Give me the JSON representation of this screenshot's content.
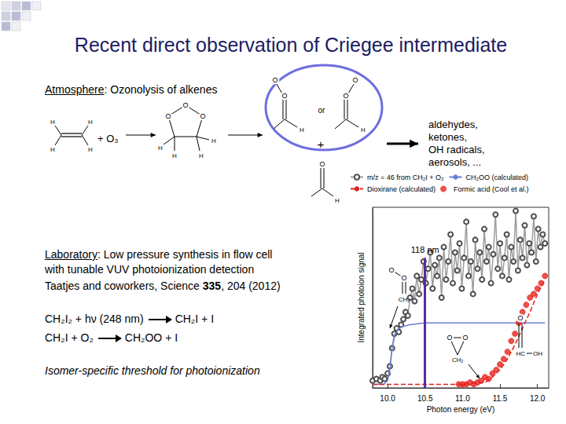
{
  "title": "Recent direct observation of Criegee intermediate",
  "atmosphere": {
    "label": "Atmosphere",
    "text": ": Ozonolysis of alkenes"
  },
  "scheme": {
    "atom_O": "O",
    "atom_H": "H",
    "reagent": "+ O₃",
    "plus": "+",
    "or": "or",
    "products": [
      "aldehydes,",
      "ketones,",
      "OH radicals,",
      "aerosols, ..."
    ]
  },
  "laboratory": {
    "label": "Laboratory",
    "lines": [
      ": Low pressure synthesis in flow cell",
      "with tunable VUV photoionization detection"
    ],
    "reference": [
      "Taatjes and coworkers, Science ",
      "335",
      ", 204 (2012)"
    ]
  },
  "reactions": [
    {
      "reactants": "CH₂I₂ + hν (248 nm)",
      "products": "CH₂I + I"
    },
    {
      "reactants": "CH₂I + O₂",
      "products": "CH₂OO + I"
    }
  ],
  "note": "Isomer-specific threshold for photoionization",
  "structure_labels": {
    "CH2OO": [
      "O",
      "O",
      "CH₂"
    ],
    "dioxirane": [
      "O",
      "O",
      "CH₂"
    ],
    "formic_acid": [
      "O",
      "HC",
      "OH"
    ]
  },
  "chart_data": {
    "type": "line",
    "x_label": "Photon energy (eV)",
    "y_label": "Integrated photoion signal",
    "xlim": [
      9.8,
      12.15
    ],
    "xticks": [
      {
        "value": 10,
        "label": "10.0"
      },
      {
        "value": 10.5,
        "label": "10.5"
      },
      {
        "value": 11,
        "label": "11.0"
      },
      {
        "value": 11.5,
        "label": "11.5"
      },
      {
        "value": 12,
        "label": "12.0"
      }
    ],
    "ylim": [
      0,
      1
    ],
    "yticks": [],
    "tick_labels": "x",
    "grid": false,
    "legend": "top",
    "series": [
      {
        "name": "m/z = 46 from CH₂I + O₂",
        "type": "line",
        "color": "#4d4d4d",
        "marker": "open_circle",
        "line_style": "solid",
        "x": [
          9.8,
          9.85,
          9.9,
          9.93,
          9.96,
          10.0,
          10.03,
          10.06,
          10.09,
          10.12,
          10.15,
          10.18,
          10.21,
          10.24,
          10.27,
          10.3,
          10.33,
          10.36,
          10.39,
          10.42,
          10.45,
          10.48,
          10.51,
          10.54,
          10.57,
          10.6,
          10.63,
          10.66,
          10.69,
          10.72,
          10.75,
          10.78,
          10.81,
          10.84,
          10.87,
          10.9,
          10.93,
          10.96,
          10.99,
          11.02,
          11.05,
          11.08,
          11.11,
          11.14,
          11.17,
          11.2,
          11.23,
          11.26,
          11.29,
          11.32,
          11.35,
          11.38,
          11.41,
          11.44,
          11.47,
          11.5,
          11.53,
          11.56,
          11.59,
          11.62,
          11.65,
          11.68,
          11.71,
          11.74,
          11.77,
          11.8,
          11.83,
          11.86,
          11.89,
          11.92,
          11.95,
          11.98,
          12.01,
          12.04,
          12.07,
          12.1
        ],
        "values": [
          0.04,
          0.05,
          0.04,
          0.06,
          0.05,
          0.08,
          0.12,
          0.22,
          0.3,
          0.33,
          0.31,
          0.35,
          0.38,
          0.42,
          0.4,
          0.5,
          0.55,
          0.48,
          0.62,
          0.52,
          0.6,
          0.7,
          0.58,
          0.66,
          0.75,
          0.55,
          0.68,
          0.62,
          0.72,
          0.5,
          0.78,
          0.6,
          0.7,
          0.85,
          0.58,
          0.75,
          0.65,
          0.8,
          0.55,
          0.72,
          0.92,
          0.62,
          0.7,
          0.52,
          0.82,
          0.66,
          0.75,
          0.6,
          0.88,
          0.7,
          0.78,
          0.58,
          0.74,
          0.96,
          0.66,
          0.8,
          0.62,
          0.72,
          0.85,
          0.6,
          0.78,
          0.7,
          0.98,
          0.65,
          0.82,
          0.72,
          0.9,
          0.68,
          0.8,
          0.75,
          0.95,
          0.7,
          0.88,
          0.78,
          0.85,
          0.8
        ]
      },
      {
        "name": "CH₂OO (calculated)",
        "type": "line",
        "color": "#6a7fd6",
        "marker": "none",
        "line_style": "solid",
        "x": [
          9.8,
          9.95,
          10.0,
          10.03,
          10.06,
          10.1,
          10.15,
          10.2,
          10.3,
          10.5,
          11.0,
          11.5,
          12.1
        ],
        "values": [
          0.02,
          0.02,
          0.04,
          0.1,
          0.22,
          0.3,
          0.33,
          0.34,
          0.35,
          0.36,
          0.36,
          0.36,
          0.36
        ]
      },
      {
        "name": "Dioxirane (calculated)",
        "type": "line",
        "color": "#e02020",
        "marker": "none",
        "line_style": "dashed",
        "x": [
          9.8,
          11.0,
          11.3,
          11.4,
          11.5,
          11.6,
          11.7,
          11.8,
          11.9,
          12.0,
          12.1
        ],
        "values": [
          0.02,
          0.02,
          0.03,
          0.06,
          0.1,
          0.16,
          0.24,
          0.33,
          0.42,
          0.52,
          0.6
        ]
      },
      {
        "name": "Formic acid (Cool et al.)",
        "type": "scatter",
        "color": "#e8261f",
        "marker": "filled_circle",
        "line_style": "none",
        "x": [
          10.95,
          11.0,
          11.05,
          11.1,
          11.15,
          11.2,
          11.25,
          11.3,
          11.35,
          11.4,
          11.45,
          11.5,
          11.55,
          11.6,
          11.65,
          11.7,
          11.75,
          11.8,
          11.85,
          11.9,
          11.95,
          12.0,
          12.05,
          12.1
        ],
        "values": [
          0.02,
          0.02,
          0.02,
          0.03,
          0.02,
          0.03,
          0.04,
          0.06,
          0.05,
          0.08,
          0.1,
          0.13,
          0.16,
          0.2,
          0.26,
          0.3,
          0.36,
          0.42,
          0.46,
          0.5,
          0.52,
          0.55,
          0.58,
          0.62
        ]
      }
    ],
    "annotations": [
      {
        "text": "118 nm",
        "x": 10.5,
        "y": 0.72,
        "color": "#5b2a9e"
      }
    ]
  }
}
